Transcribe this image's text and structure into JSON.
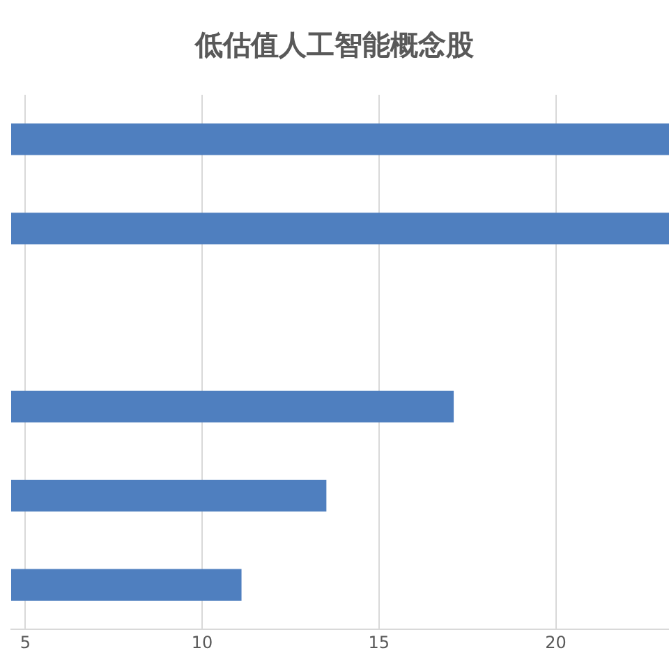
{
  "chart_data": {
    "type": "bar",
    "orientation": "horizontal",
    "title": "低估值人工智能概念股",
    "categories": [
      null,
      null,
      null,
      null,
      null,
      null
    ],
    "values": [
      23.2,
      23.2,
      null,
      17.1,
      13.5,
      11.1
    ],
    "color": "#4f7fbf",
    "xlim": [
      4.6,
      23.2
    ],
    "xticks": [
      5,
      10,
      15,
      20
    ],
    "grid": "x",
    "tick_labels": "x",
    "legend": false
  }
}
